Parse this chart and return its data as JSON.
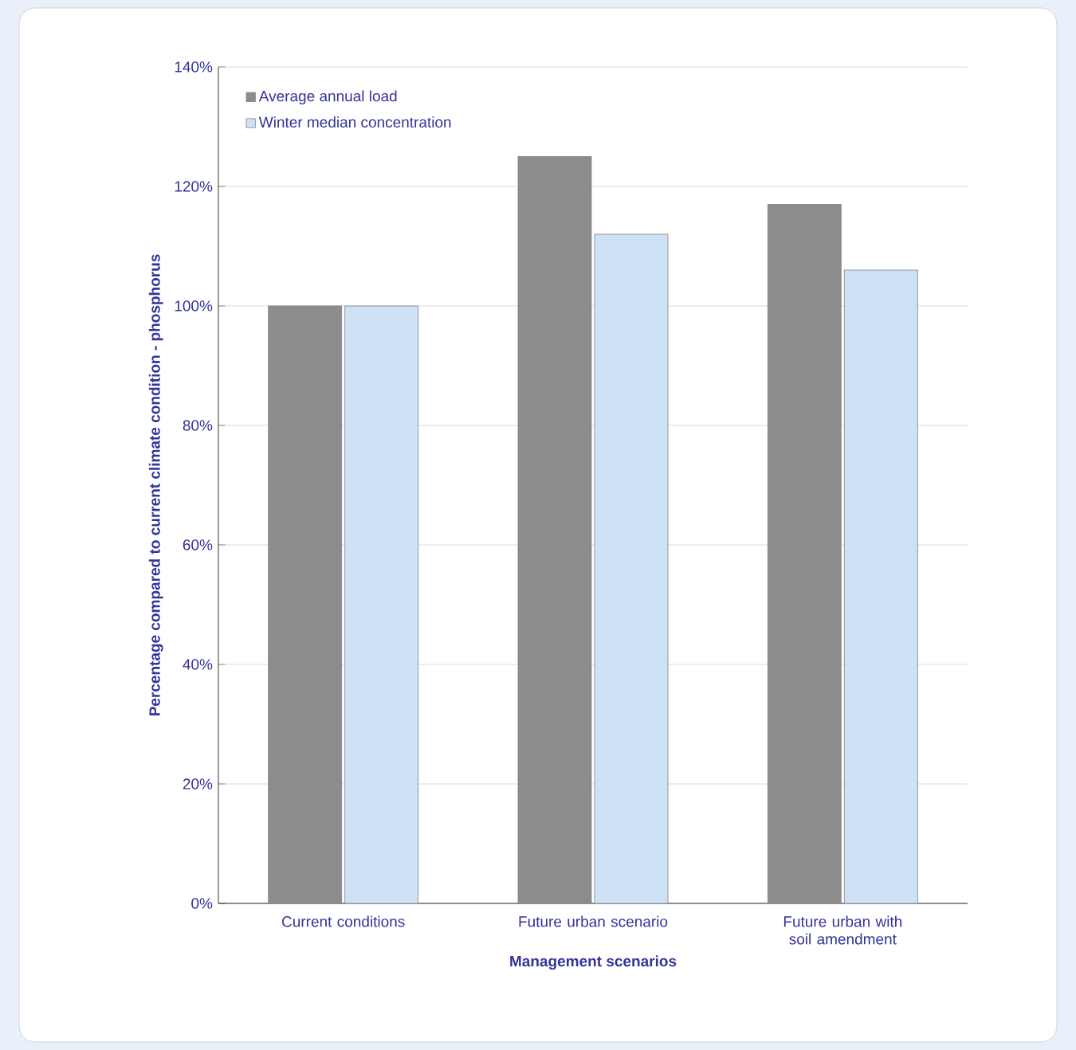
{
  "chart_data": {
    "type": "bar",
    "xlabel": "Management scenarios",
    "ylabel": "Percentage compared to current climate condition - phosphorus",
    "categories": [
      "Current conditions",
      "Future urban scenario",
      "Future urban with soil amendment"
    ],
    "series": [
      {
        "name": "Average annual load",
        "color": "#8c8c8c",
        "values": [
          100,
          125,
          117
        ]
      },
      {
        "name": "Winter median concentration",
        "color": "#cfe2f5",
        "values": [
          100,
          112,
          106
        ]
      }
    ],
    "ylim": [
      0,
      140
    ],
    "yticks": [
      {
        "value": 0,
        "label": "0%"
      },
      {
        "value": 20,
        "label": "20%"
      },
      {
        "value": 40,
        "label": "40%"
      },
      {
        "value": 60,
        "label": "60%"
      },
      {
        "value": 80,
        "label": "80%"
      },
      {
        "value": 100,
        "label": "100%"
      },
      {
        "value": 120,
        "label": "120%"
      },
      {
        "value": 140,
        "label": "140%"
      }
    ],
    "grid": "y",
    "legend": "top left"
  }
}
